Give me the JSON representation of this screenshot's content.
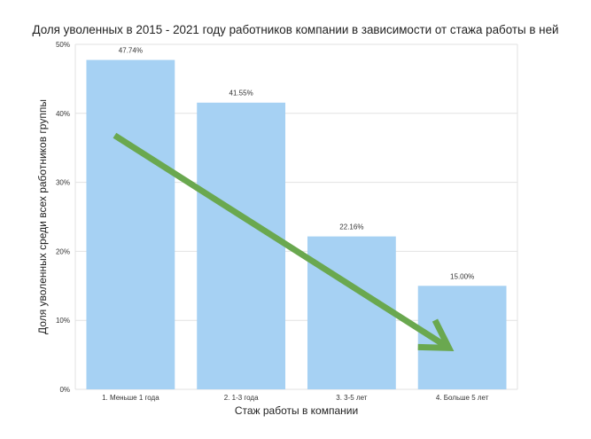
{
  "chart_data": {
    "type": "bar",
    "title": "Доля уволенных в 2015 - 2021 году работников компании в зависимости от стажа работы в ней",
    "xlabel": "Стаж работы в компании",
    "ylabel": "Доля уволенных среди всех работников группы",
    "categories": [
      "1. Меньше 1 года",
      "2. 1-3 года",
      "3. 3-5 лет",
      "4. Больше 5 лет"
    ],
    "values": [
      47.74,
      41.55,
      22.16,
      15.0
    ],
    "value_labels": [
      "47.74%",
      "41.55%",
      "22.16%",
      "15.00%"
    ],
    "ylim": [
      0,
      50
    ],
    "yticks": [
      0,
      10,
      20,
      30,
      40,
      50
    ],
    "ytick_labels": [
      "0%",
      "10%",
      "20%",
      "30%",
      "40%",
      "50%"
    ],
    "grid": "horizontal",
    "colors": {
      "bar": "#a6d1f3",
      "grid": "#e2e2e2",
      "arrow": "#6aa84f"
    },
    "annotations": [
      {
        "type": "arrow",
        "description": "downward trend arrow",
        "from_category": 0,
        "from_value": 36.8,
        "to_category": 3,
        "to_value": 6
      }
    ]
  }
}
